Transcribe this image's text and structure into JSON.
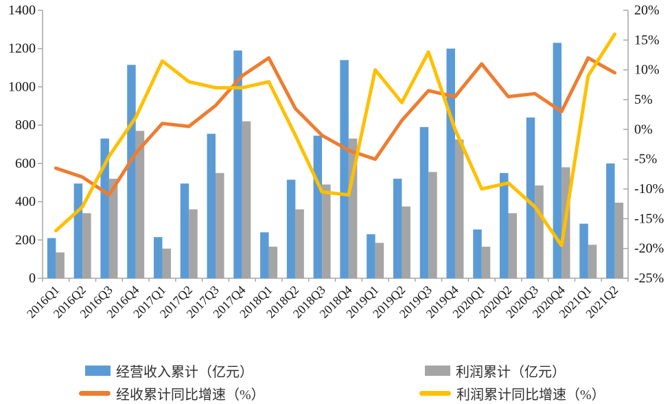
{
  "chart_data": {
    "type": "combo-bar-line",
    "title": "",
    "grid": false,
    "legend_position": "bottom",
    "categories": [
      "2016Q1",
      "2016Q2",
      "2016Q3",
      "2016Q4",
      "2017Q1",
      "2017Q2",
      "2017Q3",
      "2017Q4",
      "2018Q1",
      "2018Q2",
      "2018Q3",
      "2018Q4",
      "2019Q1",
      "2019Q2",
      "2019Q3",
      "2019Q4",
      "2020Q1",
      "2020Q2",
      "2020Q3",
      "2020Q4",
      "2021Q1",
      "2021Q2"
    ],
    "series": [
      {
        "name": "经营收入累计（亿元）",
        "type": "bar",
        "axis": "left",
        "color": "#5B9BD5",
        "values": [
          210,
          495,
          730,
          1115,
          215,
          495,
          755,
          1190,
          240,
          515,
          745,
          1140,
          230,
          520,
          790,
          1200,
          255,
          550,
          840,
          1230,
          285,
          600
        ]
      },
      {
        "name": "利润累计（亿元）",
        "type": "bar",
        "axis": "left",
        "color": "#A5A5A5",
        "values": [
          135,
          340,
          520,
          770,
          155,
          360,
          550,
          820,
          165,
          360,
          490,
          730,
          185,
          375,
          555,
          725,
          165,
          340,
          485,
          580,
          175,
          395
        ]
      },
      {
        "name": "经收累计同比增速（%）",
        "type": "line",
        "axis": "right",
        "color": "#ED7D31",
        "values": [
          -6.5,
          -8,
          -11,
          -4,
          1,
          0.5,
          4,
          9,
          12,
          3.5,
          -1,
          -3.5,
          -5,
          1.5,
          6.5,
          5.5,
          11,
          5.5,
          6,
          3,
          12,
          9.5
        ]
      },
      {
        "name": "利润累计同比增速（%）",
        "type": "line",
        "axis": "right",
        "color": "#FFC000",
        "values": [
          -17,
          -13,
          -4.5,
          2,
          11.5,
          8,
          7,
          7,
          8,
          -1,
          -10.5,
          -11,
          10,
          4.5,
          13,
          0,
          -10,
          -9,
          -13,
          -19.5,
          9,
          16
        ]
      }
    ],
    "left_axis": {
      "min": 0,
      "max": 1400,
      "step": 200,
      "tick_labels": [
        "0",
        "200",
        "400",
        "600",
        "800",
        "1000",
        "1200",
        "1400"
      ]
    },
    "right_axis": {
      "min": -25,
      "max": 20,
      "step": 5,
      "tick_labels": [
        "-25%",
        "-20%",
        "-15%",
        "-10%",
        "-5%",
        "0%",
        "5%",
        "10%",
        "15%",
        "20%"
      ]
    }
  }
}
